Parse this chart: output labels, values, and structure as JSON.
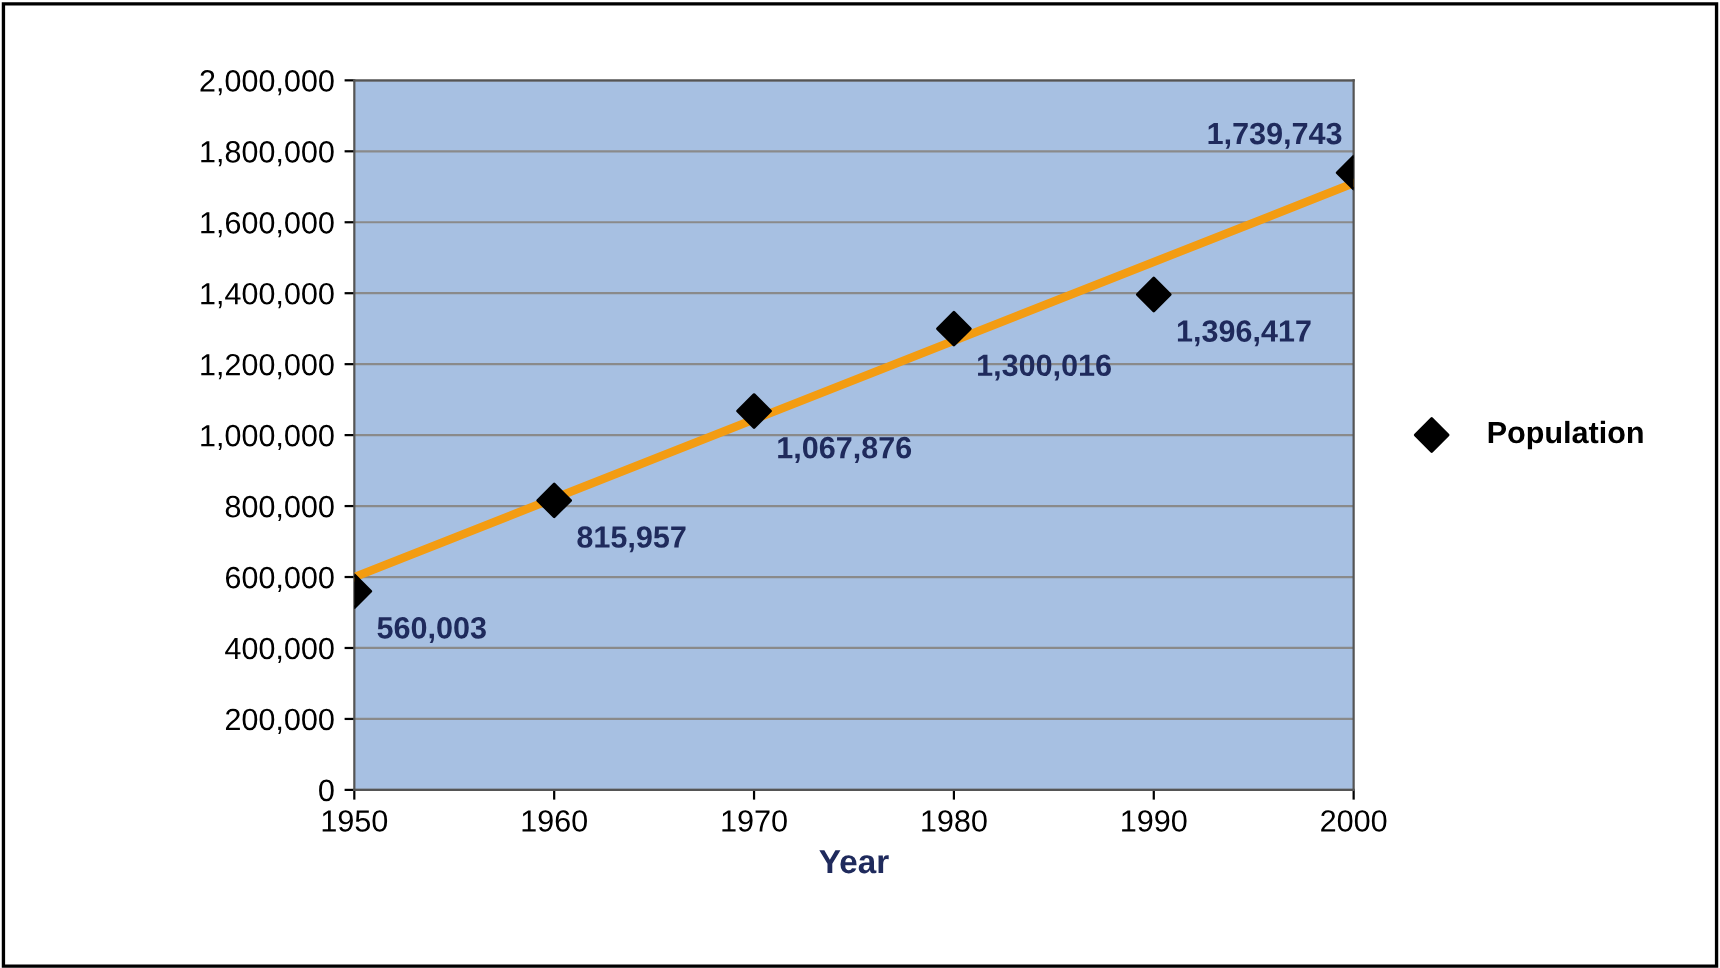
{
  "chart_data": {
    "type": "scatter",
    "xlabel": "Year",
    "x": [
      1950,
      1960,
      1970,
      1980,
      1990,
      2000
    ],
    "series": [
      {
        "name": "Population",
        "color": "#000000",
        "marker": "diamond",
        "values": [
          560003,
          815957,
          1067876,
          1300016,
          1396417,
          1739743
        ],
        "value_labels": [
          "560,003",
          "815,957",
          "1,067,876",
          "1,300,016",
          "1,396,417",
          "1,739,743"
        ]
      },
      {
        "type": "line",
        "color": "#f39c12",
        "x": [
          1950,
          2000
        ],
        "values": [
          600000,
          1710000
        ]
      }
    ],
    "xlim": [
      1950,
      2000
    ],
    "xticks": [
      1950,
      1960,
      1970,
      1980,
      1990,
      2000
    ],
    "ylim": [
      0,
      2000000
    ],
    "yticks": [
      {
        "value": 0,
        "label": "0"
      },
      {
        "value": 200000,
        "label": "200,000"
      },
      {
        "value": 400000,
        "label": "400,000"
      },
      {
        "value": 600000,
        "label": "600,000"
      },
      {
        "value": 800000,
        "label": "800,000"
      },
      {
        "value": 1000000,
        "label": "1,000,000"
      },
      {
        "value": 1200000,
        "label": "1,200,000"
      },
      {
        "value": 1400000,
        "label": "1,400,000"
      },
      {
        "value": 1600000,
        "label": "1,600,000"
      },
      {
        "value": 1800000,
        "label": "1,800,000"
      },
      {
        "value": 2000000,
        "label": "2,000,000"
      }
    ],
    "grid": "y",
    "legend": "right"
  }
}
